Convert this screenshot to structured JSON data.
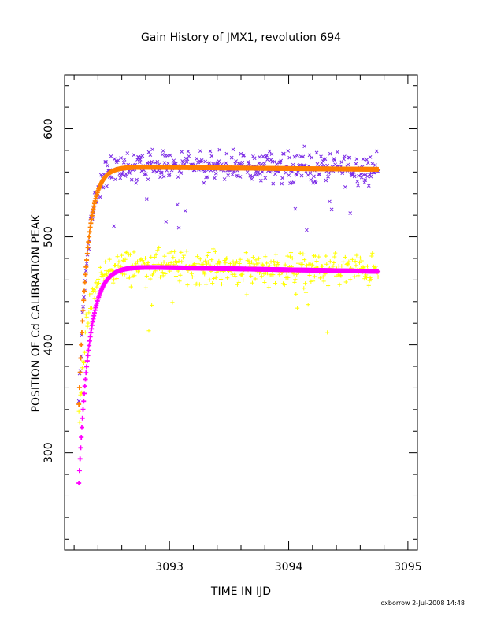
{
  "chart_data": {
    "type": "scatter",
    "title": "Gain History of JMX1, revolution 694",
    "xlabel": "TIME IN IJD",
    "ylabel": "POSITION OF Cd CALIBRATION PEAK",
    "xlim": [
      3092.12,
      3095.08
    ],
    "ylim": [
      210,
      650
    ],
    "xticks": [
      3093,
      3094,
      3095
    ],
    "xtick_labels": [
      "3093",
      "3094",
      "3095"
    ],
    "yticks": [
      300,
      400,
      500,
      600
    ],
    "ytick_labels": [
      "300",
      "400",
      "500",
      "600"
    ],
    "x_minor_step": 0.2,
    "y_minor_step": 20,
    "x_start": 3092.24,
    "x_end": 3094.75,
    "grid": false,
    "series": [
      {
        "marker": "x",
        "color": "#7b2ce6",
        "kind": "measured",
        "curve": {
          "type": "rise",
          "start": 340,
          "plateau": 566,
          "tau": 0.07,
          "drift_per_day": -1.0,
          "scatter": 22
        }
      },
      {
        "marker": "+",
        "color": "#ffff00",
        "kind": "measured",
        "curve": {
          "type": "rise",
          "start": 332,
          "plateau": 474,
          "tau": 0.075,
          "drift_per_day": -2.0,
          "scatter": 22
        }
      },
      {
        "marker": "+",
        "color": "#ff8000",
        "kind": "fit",
        "curve": {
          "type": "rise",
          "start": 345,
          "plateau": 565,
          "tau": 0.07,
          "drift_per_day": -1.0
        }
      },
      {
        "marker": "+",
        "color": "#ff00ff",
        "kind": "fit",
        "curve": {
          "type": "rise",
          "start": 272,
          "plateau": 473,
          "tau": 0.085,
          "drift_per_day": -2.0
        }
      }
    ]
  },
  "footer": "oxborrow 2-Jul-2008 14:48"
}
